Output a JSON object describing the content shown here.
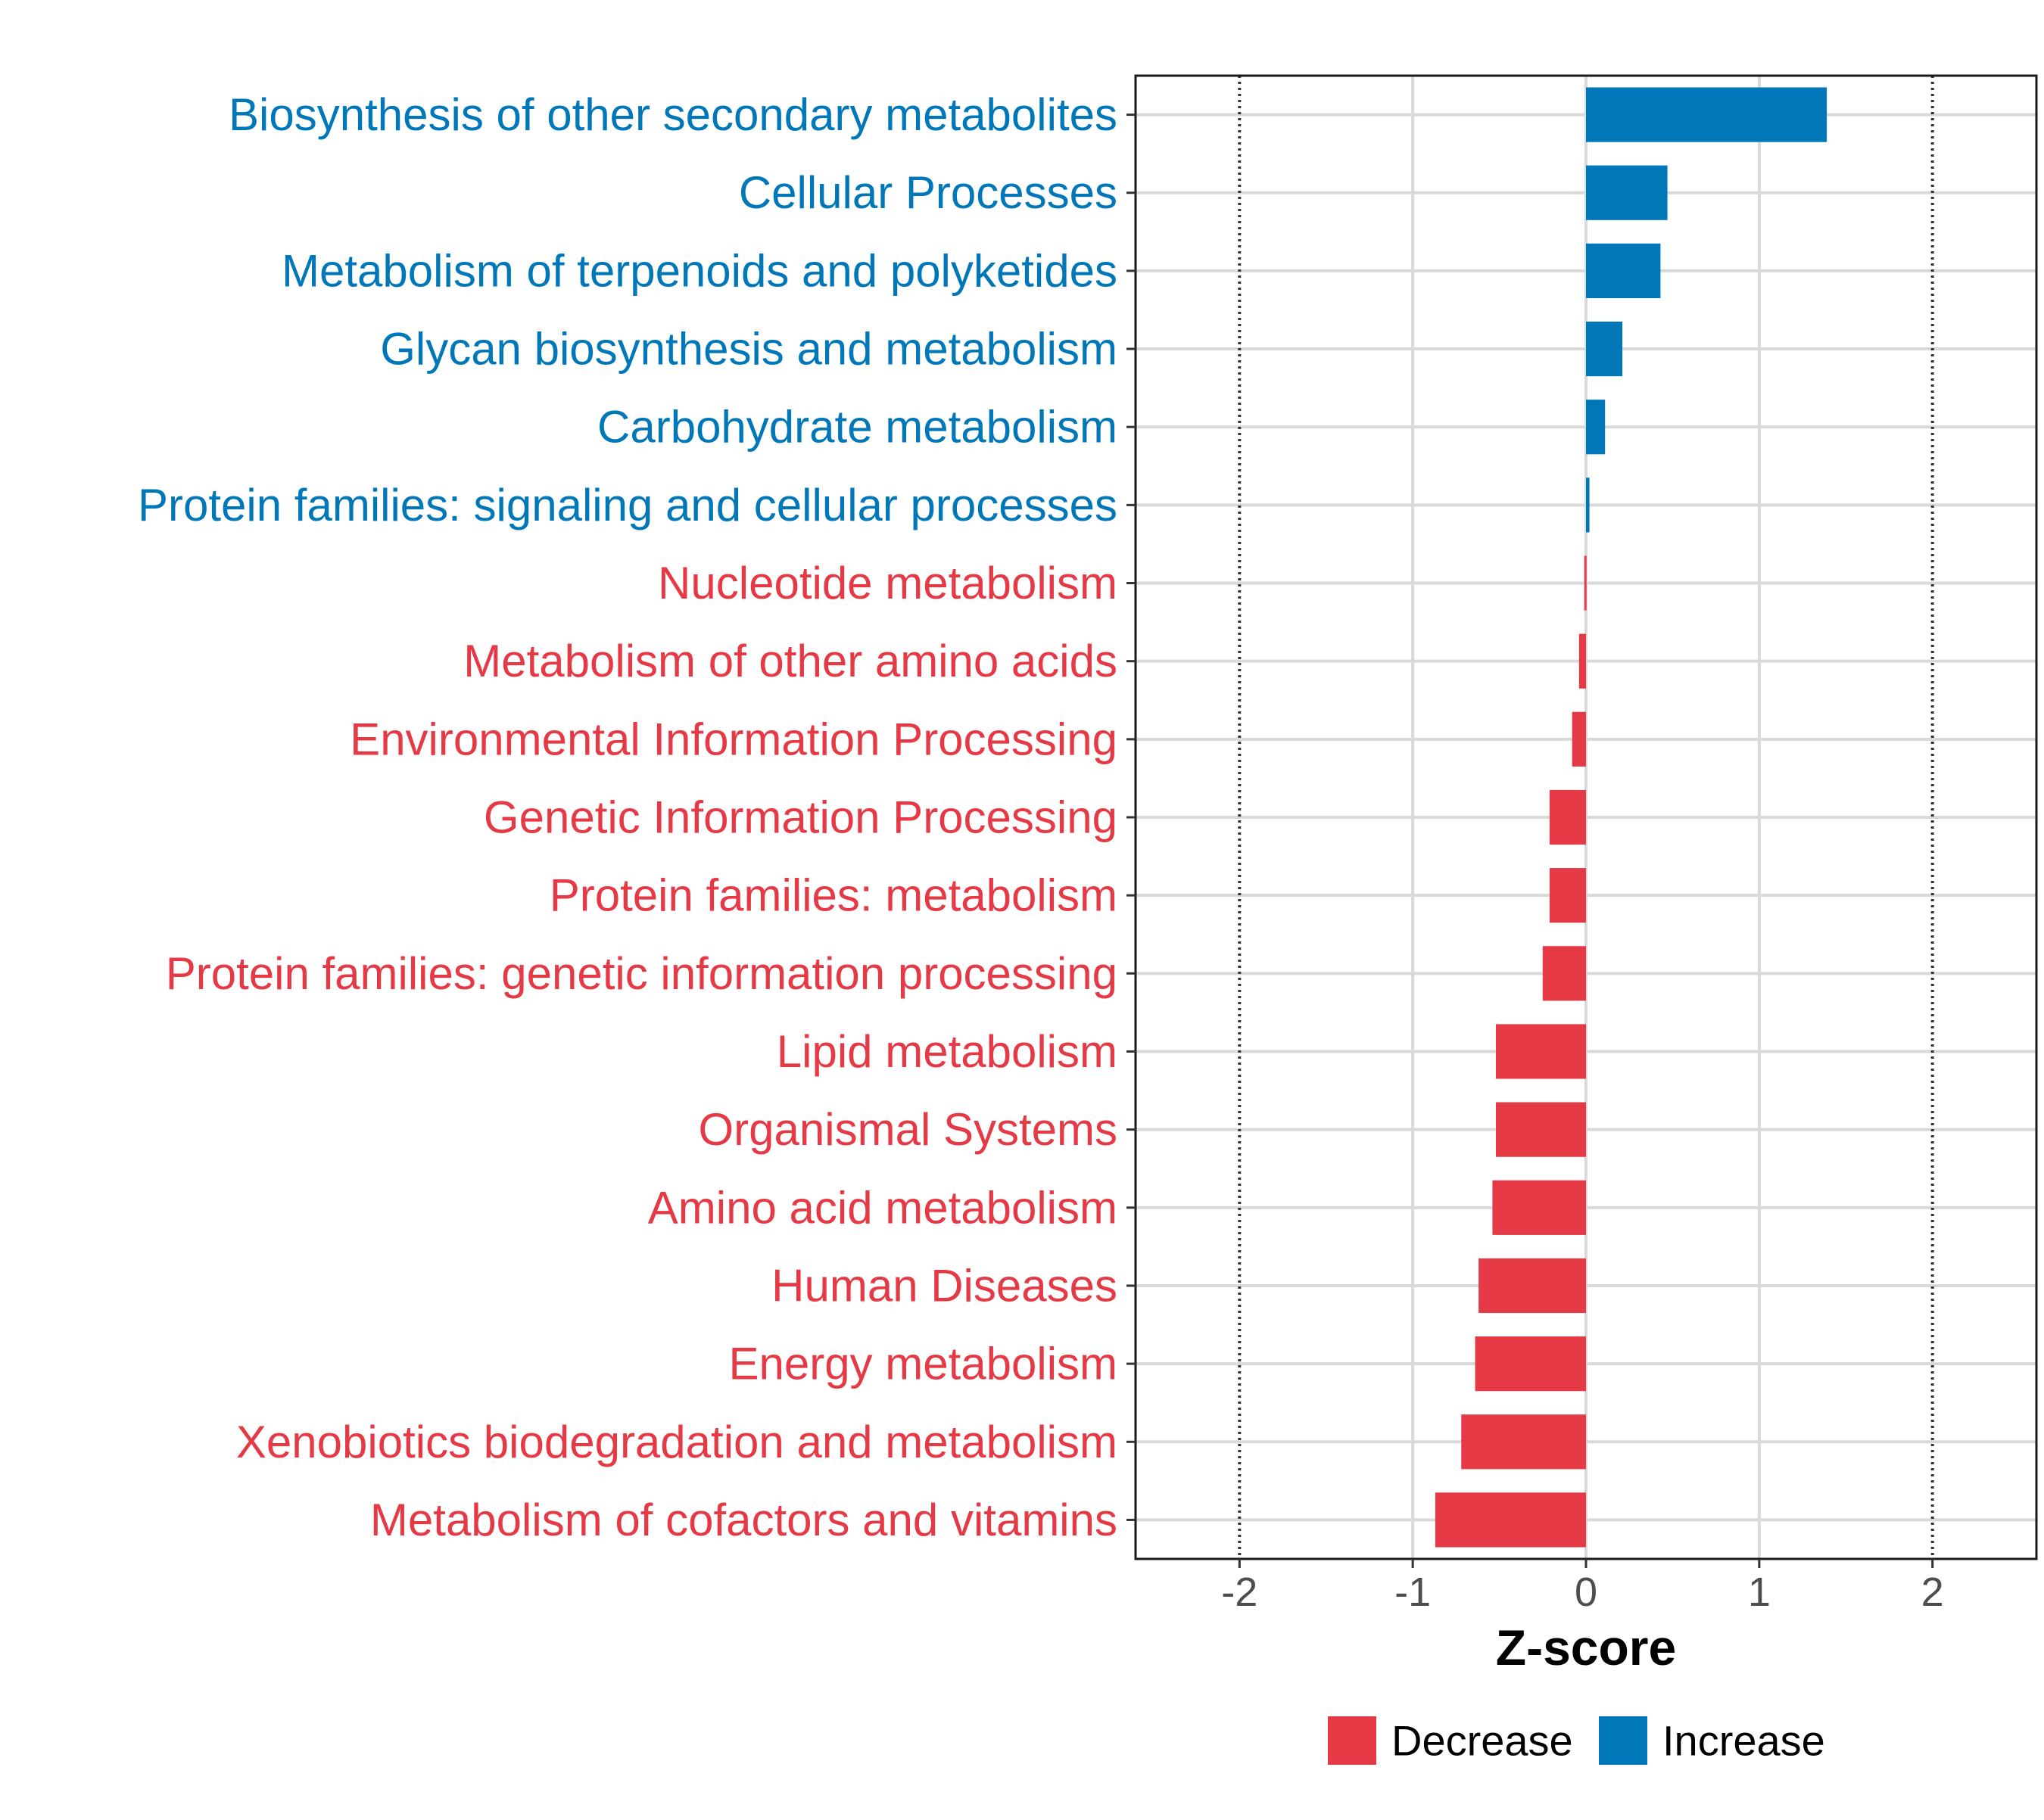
{
  "chart_data": {
    "type": "bar",
    "orientation": "horizontal",
    "title": "",
    "xlabel": "Z-score",
    "ylabel": "",
    "xlim": [
      -2.6,
      2.6
    ],
    "x_ticks": [
      -2,
      -1,
      0,
      1,
      2
    ],
    "x_tick_labels": [
      "-2",
      "-1",
      "0",
      "1",
      "2"
    ],
    "reference_lines": [
      -2,
      2
    ],
    "grid": true,
    "legend_position": "bottom",
    "categories": [
      "Biosynthesis of other secondary metabolites",
      "Cellular Processes",
      "Metabolism of terpenoids and polyketides",
      "Glycan biosynthesis and metabolism",
      "Carbohydrate metabolism",
      "Protein families: signaling and cellular processes",
      "Nucleotide metabolism",
      "Metabolism of other amino acids",
      "Environmental Information Processing",
      "Genetic Information Processing",
      "Protein families: metabolism",
      "Protein families: genetic information processing",
      "Lipid metabolism",
      "Organismal Systems",
      "Amino acid metabolism",
      "Human Diseases",
      "Energy metabolism",
      "Xenobiotics biodegradation and metabolism",
      "Metabolism of cofactors and vitamins"
    ],
    "values": [
      1.39,
      0.47,
      0.43,
      0.21,
      0.11,
      0.02,
      -0.01,
      -0.04,
      -0.08,
      -0.21,
      -0.21,
      -0.25,
      -0.52,
      -0.52,
      -0.54,
      -0.62,
      -0.64,
      -0.72,
      -0.87
    ],
    "groups": [
      "Increase",
      "Increase",
      "Increase",
      "Increase",
      "Increase",
      "Increase",
      "Decrease",
      "Decrease",
      "Decrease",
      "Decrease",
      "Decrease",
      "Decrease",
      "Decrease",
      "Decrease",
      "Decrease",
      "Decrease",
      "Decrease",
      "Decrease",
      "Decrease"
    ],
    "legend": [
      {
        "name": "Decrease",
        "color": "#e63946"
      },
      {
        "name": "Increase",
        "color": "#0077b8"
      }
    ]
  }
}
